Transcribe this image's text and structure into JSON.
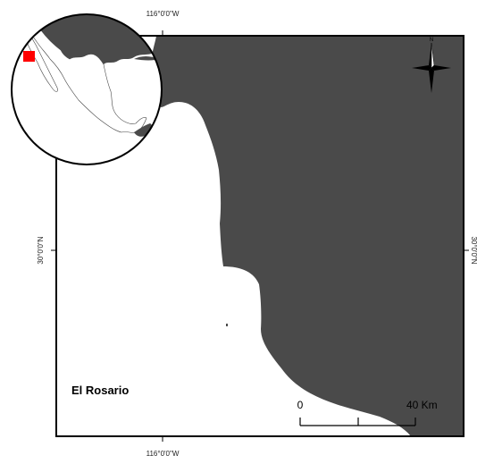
{
  "graticule": {
    "top_label": "116°0'0\"W",
    "bottom_label": "116°0'0\"W",
    "left_label": "30°0'0\"N",
    "right_label": "30°0'0\"N"
  },
  "place_label": "El Rosario",
  "scale_bar": {
    "start_label": "0",
    "end_label": "40 Km"
  },
  "north_arrow": {
    "label": "N"
  },
  "colors": {
    "land": "#4a4a4a",
    "sea": "#ffffff",
    "frame": "#000000",
    "study_area_marker": "#ff0000"
  }
}
